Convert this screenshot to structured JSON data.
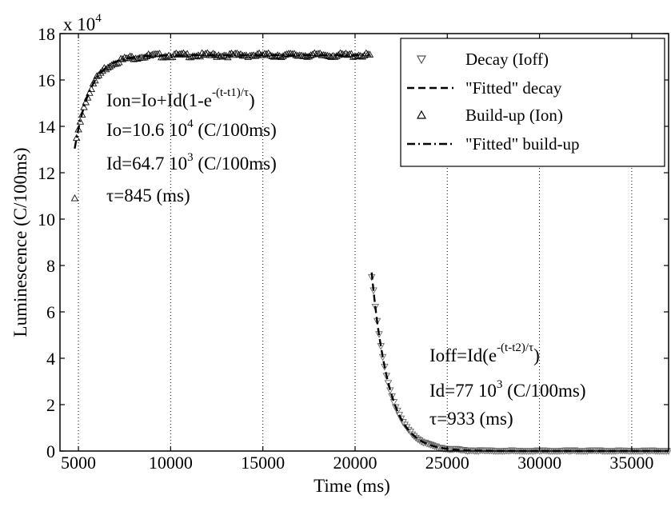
{
  "chart_data": {
    "type": "scatter",
    "title": "",
    "xlabel": "Time (ms)",
    "ylabel": "Luminescence (C/100ms)",
    "y_multiplier": "x 10",
    "y_multiplier_exp": "4",
    "xlim": [
      4000,
      37000
    ],
    "ylim": [
      0,
      180000
    ],
    "x_ticks": [
      5000,
      10000,
      15000,
      20000,
      25000,
      30000,
      35000
    ],
    "y_ticks": [
      0,
      20000,
      40000,
      60000,
      80000,
      100000,
      120000,
      140000,
      160000,
      180000
    ],
    "x_tick_labels": [
      "5000",
      "10000",
      "15000",
      "20000",
      "25000",
      "30000",
      "35000"
    ],
    "y_tick_labels": [
      "0",
      "2",
      "4",
      "6",
      "8",
      "10",
      "12",
      "14",
      "16",
      "18"
    ],
    "grid": "vertical dotted",
    "legend_position": "top-right",
    "series": [
      {
        "name": "Decay (Ioff)",
        "style": "marker",
        "marker": "triangle-down",
        "model": "decay",
        "params": {
          "t_start": 20900,
          "t_end": 37000,
          "step": 100,
          "Id": 77000,
          "tau": 933,
          "t2": 20900,
          "y_first": 75000
        }
      },
      {
        "name": "\"Fitted\" decay",
        "style": "dashed",
        "model": "decay",
        "params": {
          "t_start": 20900,
          "t_end": 37000,
          "step": 100,
          "Id": 77000,
          "tau": 933,
          "t2": 20900
        }
      },
      {
        "name": "Build-up (Ion)",
        "style": "marker",
        "marker": "triangle-up",
        "model": "buildup",
        "params": {
          "t_start": 4800,
          "t_end": 20800,
          "step": 100,
          "Io": 106000,
          "Id": 64700,
          "tau": 845,
          "t1": 4400,
          "y_first": 109000
        }
      },
      {
        "name": "\"Fitted\" build-up",
        "style": "dashdot",
        "model": "buildup",
        "params": {
          "t_start": 4800,
          "t_end": 20800,
          "step": 50,
          "Io": 106000,
          "Id": 64700,
          "tau": 845,
          "t1": 4400
        }
      }
    ],
    "annotations": {
      "buildup": {
        "formula_base": "Ion=Io+Id(1-e",
        "formula_exp": "-(t-t1)/τ",
        "formula_close": ")",
        "io_text": "Io=10.6 10",
        "io_exp": "4",
        "io_unit": " (C/100ms)",
        "id_text": "Id=64.7 10",
        "id_exp": "3",
        "id_unit": " (C/100ms)",
        "tau_text": "τ=845 (ms)"
      },
      "decay": {
        "formula_base": "Ioff=Id(e",
        "formula_exp": "-(t-t2)/τ",
        "formula_close": ")",
        "id_text": "Id=77 10",
        "id_exp": "3",
        "id_unit": " (C/100ms)",
        "tau_text": "τ=933 (ms)"
      }
    }
  }
}
